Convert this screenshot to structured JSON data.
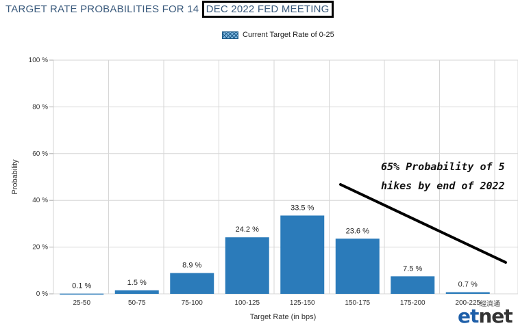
{
  "header": {
    "title_prefix": "TARGET RATE PROBABILITIES FOR 14 ",
    "title_highlight": "DEC 2022 FED MEETING"
  },
  "annotation": {
    "line1": "65% Probability of 5",
    "line2": "hikes by end of 2022"
  },
  "brand": {
    "logo_et": "et",
    "logo_net": "net",
    "cn_text": "經濟通"
  },
  "colors": {
    "bar": "#2b7bba",
    "grid": "#d6d6d6",
    "title": "#3a5a7c"
  },
  "chart_data": {
    "type": "bar",
    "title": "TARGET RATE PROBABILITIES FOR 14 DEC 2022 FED MEETING",
    "legend": "Current Target Rate of 0-25",
    "xlabel": "Target Rate (in bps)",
    "ylabel": "Probability",
    "ylim": [
      0,
      100
    ],
    "yticks": [
      0,
      20,
      40,
      60,
      80,
      100
    ],
    "ytick_labels": [
      "0 %",
      "20 %",
      "40 %",
      "60 %",
      "80 %",
      "100 %"
    ],
    "categories": [
      "25-50",
      "50-75",
      "75-100",
      "100-125",
      "125-150",
      "150-175",
      "175-200",
      "200-225"
    ],
    "values": [
      0.1,
      1.5,
      8.9,
      24.2,
      33.5,
      23.6,
      7.5,
      0.7
    ],
    "data_labels": [
      "0.1 %",
      "1.5 %",
      "8.9 %",
      "24.2 %",
      "33.5 %",
      "23.6 %",
      "7.5 %",
      "0.7 %"
    ],
    "grid": true,
    "legend_position": "top-center"
  }
}
